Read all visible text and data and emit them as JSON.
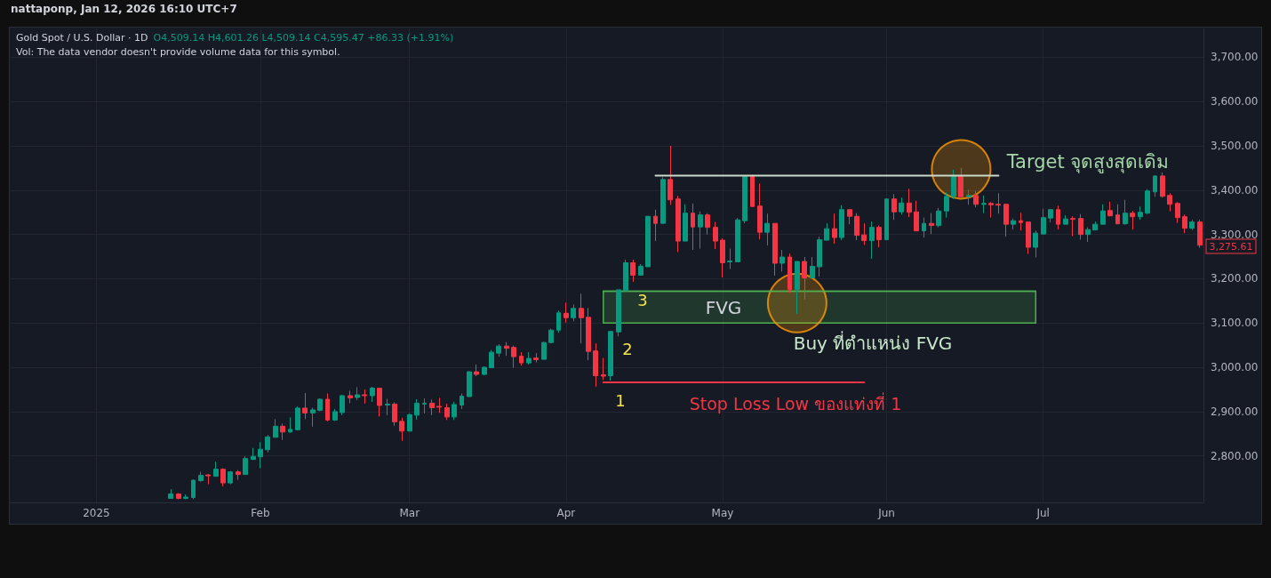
{
  "chart_data": {
    "type": "candlestick",
    "title": "Gold Spot / U.S. Dollar · 1D",
    "subtitle": "O4,509.14 H4,601.26 L4,509.14 C4,595.47 +86.33 (+1.91%)",
    "categories": [
      null,
      null,
      null,
      null,
      null,
      null,
      null,
      null,
      null,
      null,
      null,
      "2025",
      null,
      null,
      null,
      null,
      null,
      null,
      null,
      null,
      null,
      null,
      null,
      null,
      null,
      null,
      null,
      null,
      null,
      null,
      null,
      null,
      null,
      "Feb",
      null,
      null,
      null,
      null,
      null,
      null,
      null,
      null,
      null,
      null,
      null,
      null,
      null,
      null,
      null,
      null,
      null,
      null,
      null,
      "Mar",
      null,
      null,
      null,
      null,
      null,
      null,
      null,
      null,
      null,
      null,
      null,
      null,
      null,
      null,
      null,
      null,
      null,
      null,
      null,
      null,
      "Apr",
      null,
      null,
      null,
      null,
      null,
      null,
      null,
      null,
      null,
      null,
      null,
      null,
      null,
      null,
      null,
      null,
      null,
      null,
      null,
      null,
      "May",
      null,
      null,
      null,
      null,
      null,
      null,
      null,
      null,
      null,
      null,
      null,
      null,
      null,
      null,
      null,
      null,
      null,
      null,
      null,
      null,
      null,
      "Jun",
      null,
      null,
      null,
      null,
      null,
      null,
      null,
      null,
      null,
      null,
      null,
      null,
      null,
      null,
      null,
      null,
      null,
      null,
      null,
      null,
      "Jul",
      null,
      null,
      null,
      null,
      null,
      null,
      null,
      null,
      null,
      null,
      null,
      null,
      null,
      null,
      null,
      null,
      null,
      null,
      null,
      null,
      null
    ],
    "ohlc": [
      null,
      null,
      null,
      null,
      null,
      null,
      null,
      null,
      null,
      null,
      null,
      null,
      null,
      null,
      null,
      null,
      null,
      null,
      null,
      null,
      null,
      [
        2704,
        2725,
        2703,
        2714
      ],
      [
        2714,
        2716,
        2702,
        2704
      ],
      [
        2704,
        2713,
        2702,
        2707
      ],
      [
        2706,
        2747,
        2702,
        2745
      ],
      [
        2744,
        2764,
        2742,
        2756
      ],
      [
        2757,
        2759,
        2736,
        2755
      ],
      [
        2754,
        2787,
        2754,
        2770
      ],
      [
        2770,
        2772,
        2731,
        2739
      ],
      [
        2739,
        2766,
        2736,
        2764
      ],
      [
        2764,
        2768,
        2746,
        2758
      ],
      [
        2758,
        2799,
        2758,
        2794
      ],
      [
        2792,
        2818,
        2791,
        2799
      ],
      [
        2798,
        2831,
        2772,
        2815
      ],
      [
        2814,
        2847,
        2808,
        2843
      ],
      [
        2842,
        2883,
        2842,
        2867
      ],
      [
        2867,
        2873,
        2836,
        2854
      ],
      [
        2854,
        2887,
        2852,
        2860
      ],
      [
        2859,
        2912,
        2858,
        2908
      ],
      [
        2908,
        2942,
        2883,
        2897
      ],
      [
        2897,
        2909,
        2866,
        2904
      ],
      [
        2903,
        2930,
        2901,
        2928
      ],
      [
        2928,
        2941,
        2878,
        2881
      ],
      [
        2881,
        2906,
        2879,
        2900
      ],
      [
        2898,
        2938,
        2892,
        2936
      ],
      [
        2936,
        2947,
        2919,
        2931
      ],
      [
        2932,
        2955,
        2926,
        2938
      ],
      [
        2938,
        2950,
        2918,
        2936
      ],
      [
        2936,
        2956,
        2922,
        2953
      ],
      [
        2953,
        2954,
        2889,
        2914
      ],
      [
        2915,
        2929,
        2892,
        2917
      ],
      [
        2917,
        2921,
        2868,
        2877
      ],
      [
        2878,
        2886,
        2834,
        2856
      ],
      [
        2856,
        2896,
        2856,
        2893
      ],
      [
        2892,
        2928,
        2882,
        2919
      ],
      [
        2917,
        2930,
        2896,
        2919
      ],
      [
        2919,
        2927,
        2892,
        2909
      ],
      [
        2912,
        2931,
        2897,
        2910
      ],
      [
        2909,
        2918,
        2881,
        2888
      ],
      [
        2888,
        2922,
        2881,
        2916
      ],
      [
        2915,
        2941,
        2906,
        2935
      ],
      [
        2934,
        2991,
        2933,
        2990
      ],
      [
        2990,
        3006,
        2980,
        2984
      ],
      [
        2984,
        3002,
        2982,
        3000
      ],
      [
        2999,
        3039,
        2999,
        3034
      ],
      [
        3032,
        3052,
        3024,
        3048
      ],
      [
        3048,
        3057,
        3026,
        3043
      ],
      [
        3045,
        3049,
        2999,
        3024
      ],
      [
        3025,
        3034,
        3004,
        3010
      ],
      [
        3010,
        3034,
        3006,
        3020
      ],
      [
        3021,
        3032,
        3011,
        3017
      ],
      [
        3018,
        3058,
        3018,
        3056
      ],
      [
        3056,
        3087,
        3054,
        3084
      ],
      [
        3084,
        3128,
        3078,
        3123
      ],
      [
        3122,
        3146,
        3101,
        3112
      ],
      [
        3112,
        3142,
        3104,
        3133
      ],
      [
        3133,
        3166,
        3054,
        3112
      ],
      [
        3113,
        3134,
        3016,
        3036
      ],
      [
        3037,
        3054,
        2956,
        2981
      ],
      [
        2983,
        3021,
        2971,
        2980
      ],
      [
        2981,
        3081,
        2970,
        3081
      ],
      [
        3080,
        3175,
        3070,
        3175
      ],
      [
        3173,
        3243,
        3173,
        3236
      ],
      [
        3236,
        3243,
        3193,
        3208
      ],
      [
        3208,
        3233,
        3208,
        3228
      ],
      [
        3227,
        3341,
        3227,
        3341
      ],
      [
        3341,
        3356,
        3285,
        3325
      ],
      [
        3325,
        3429,
        3325,
        3424
      ],
      [
        3424,
        3500,
        3367,
        3378
      ],
      [
        3380,
        3387,
        3260,
        3285
      ],
      [
        3285,
        3368,
        3285,
        3348
      ],
      [
        3348,
        3370,
        3265,
        3317
      ],
      [
        3317,
        3352,
        3268,
        3344
      ],
      [
        3344,
        3348,
        3300,
        3316
      ],
      [
        3316,
        3328,
        3267,
        3285
      ],
      [
        3287,
        3291,
        3203,
        3236
      ],
      [
        3238,
        3268,
        3222,
        3240
      ],
      [
        3238,
        3337,
        3237,
        3333
      ],
      [
        3331,
        3431,
        3325,
        3431
      ],
      [
        3431,
        3435,
        3363,
        3363
      ],
      [
        3364,
        3415,
        3289,
        3305
      ],
      [
        3305,
        3347,
        3275,
        3325
      ],
      [
        3325,
        3325,
        3207,
        3235
      ],
      [
        3235,
        3265,
        3216,
        3249
      ],
      [
        3249,
        3257,
        3168,
        3176
      ],
      [
        3176,
        3239,
        3121,
        3239
      ],
      [
        3239,
        3249,
        3153,
        3202
      ],
      [
        3202,
        3249,
        3202,
        3228
      ],
      [
        3227,
        3295,
        3205,
        3288
      ],
      [
        3287,
        3325,
        3287,
        3313
      ],
      [
        3313,
        3347,
        3279,
        3293
      ],
      [
        3293,
        3366,
        3287,
        3356
      ],
      [
        3356,
        3356,
        3323,
        3341
      ],
      [
        3341,
        3348,
        3287,
        3298
      ],
      [
        3299,
        3325,
        3276,
        3286
      ],
      [
        3286,
        3329,
        3245,
        3316
      ],
      [
        3316,
        3320,
        3271,
        3288
      ],
      [
        3288,
        3380,
        3288,
        3380
      ],
      [
        3380,
        3391,
        3333,
        3351
      ],
      [
        3351,
        3383,
        3345,
        3371
      ],
      [
        3371,
        3403,
        3339,
        3350
      ],
      [
        3351,
        3376,
        3308,
        3308
      ],
      [
        3308,
        3338,
        3293,
        3325
      ],
      [
        3325,
        3348,
        3301,
        3320
      ],
      [
        3320,
        3360,
        3316,
        3353
      ],
      [
        3353,
        3395,
        3338,
        3386
      ],
      [
        3386,
        3446,
        3380,
        3431
      ],
      [
        3431,
        3450,
        3385,
        3385
      ],
      [
        3385,
        3401,
        3367,
        3388
      ],
      [
        3388,
        3398,
        3361,
        3368
      ],
      [
        3368,
        3388,
        3348,
        3370
      ],
      [
        3370,
        3373,
        3338,
        3367
      ],
      [
        3368,
        3393,
        3347,
        3366
      ],
      [
        3368,
        3369,
        3295,
        3323
      ],
      [
        3323,
        3336,
        3311,
        3331
      ],
      [
        3331,
        3349,
        3309,
        3327
      ],
      [
        3328,
        3328,
        3256,
        3271
      ],
      [
        3271,
        3309,
        3248,
        3303
      ],
      [
        3301,
        3358,
        3301,
        3338
      ],
      [
        3337,
        3356,
        3327,
        3356
      ],
      [
        3356,
        3365,
        3311,
        3323
      ],
      [
        3323,
        3343,
        3323,
        3335
      ],
      [
        3336,
        3341,
        3296,
        3334
      ],
      [
        3336,
        3346,
        3288,
        3300
      ],
      [
        3300,
        3316,
        3283,
        3311
      ],
      [
        3310,
        3329,
        3310,
        3323
      ],
      [
        3323,
        3368,
        3323,
        3353
      ],
      [
        3354,
        3374,
        3341,
        3342
      ],
      [
        3344,
        3368,
        3323,
        3324
      ],
      [
        3324,
        3378,
        3322,
        3348
      ],
      [
        3348,
        3353,
        3311,
        3340
      ],
      [
        3340,
        3363,
        3333,
        3350
      ],
      [
        3348,
        3402,
        3346,
        3398
      ],
      [
        3396,
        3433,
        3385,
        3432
      ],
      [
        3432,
        3440,
        3383,
        3386
      ],
      [
        3388,
        3393,
        3352,
        3368
      ],
      [
        3370,
        3373,
        3326,
        3338
      ],
      [
        3340,
        3345,
        3303,
        3314
      ],
      [
        3314,
        3333,
        3310,
        3328
      ],
      [
        3328,
        3333,
        3270,
        3275.61
      ]
    ],
    "series": [
      {
        "type": "line",
        "color": "#c9d9c9",
        "values": [
          null,
          null,
          null,
          null,
          null,
          null,
          null,
          null,
          null,
          null,
          null,
          null,
          null,
          null,
          null,
          null,
          null,
          null,
          null,
          null,
          null,
          null,
          null,
          null,
          null,
          null,
          null,
          null,
          null,
          null,
          null,
          null,
          null,
          null,
          null,
          null,
          null,
          null,
          null,
          null,
          null,
          null,
          null,
          null,
          null,
          null,
          null,
          null,
          null,
          null,
          null,
          null,
          null,
          null,
          null,
          null,
          null,
          null,
          null,
          null,
          null,
          null,
          null,
          null,
          null,
          null,
          null,
          null,
          null,
          null,
          null,
          null,
          null,
          null,
          null,
          null,
          null,
          null,
          null,
          null,
          null,
          null,
          null,
          null,
          null,
          null,
          3433,
          3433,
          3433,
          3433,
          3433,
          3433,
          3433,
          3433,
          3433,
          3433,
          3433,
          3433,
          3433,
          3433,
          3433,
          3433,
          3433,
          3433,
          3433,
          3433,
          3433,
          3433,
          3433,
          3433,
          3433,
          3433,
          3433,
          3433,
          3433,
          3433,
          3433,
          3433,
          3433,
          3433,
          3433,
          3433,
          3433,
          3433,
          3433,
          3433,
          3433,
          3433,
          3433,
          3433,
          3433,
          3433,
          3433,
          null,
          null,
          null,
          null,
          null,
          null,
          null,
          null,
          null,
          null,
          null,
          null,
          null,
          null,
          null,
          null,
          null,
          null,
          null,
          null,
          null,
          null,
          null,
          null,
          null,
          null,
          null
        ]
      },
      {
        "type": "line",
        "color": "#f23645",
        "values": [
          null,
          null,
          null,
          null,
          null,
          null,
          null,
          null,
          null,
          null,
          null,
          null,
          null,
          null,
          null,
          null,
          null,
          null,
          null,
          null,
          null,
          null,
          null,
          null,
          null,
          null,
          null,
          null,
          null,
          null,
          null,
          null,
          null,
          null,
          null,
          null,
          null,
          null,
          null,
          null,
          null,
          null,
          null,
          null,
          null,
          null,
          null,
          null,
          null,
          null,
          null,
          null,
          null,
          null,
          null,
          null,
          null,
          null,
          null,
          null,
          null,
          null,
          null,
          null,
          null,
          null,
          null,
          null,
          null,
          null,
          null,
          null,
          null,
          null,
          null,
          null,
          null,
          null,
          null,
          2966,
          2966,
          2966,
          2966,
          2966,
          2966,
          2966,
          2966,
          2966,
          2966,
          2966,
          2966,
          2966,
          2966,
          2966,
          2966,
          2966,
          2966,
          2966,
          2966,
          2966,
          2966,
          2966,
          2966,
          2966,
          2966,
          2966,
          2966,
          2966,
          2966,
          2966,
          2966,
          2966,
          2966,
          2966,
          2966,
          null,
          null,
          null,
          null,
          null,
          null,
          null,
          null,
          null,
          null,
          null,
          null,
          null,
          null,
          null,
          null,
          null,
          null,
          null,
          null,
          null,
          null,
          null,
          null,
          null,
          null,
          null,
          null,
          null,
          null,
          null,
          null,
          null,
          null,
          null,
          null,
          null,
          null,
          null,
          null,
          null,
          null,
          null,
          null,
          null
        ]
      },
      {
        "type": "line",
        "color": "#4caf50",
        "values": [
          null,
          null,
          null,
          null,
          null,
          null,
          null,
          null,
          null,
          null,
          null,
          null,
          null,
          null,
          null,
          null,
          null,
          null,
          null,
          null,
          null,
          null,
          null,
          null,
          null,
          null,
          null,
          null,
          null,
          null,
          null,
          null,
          null,
          null,
          null,
          null,
          null,
          null,
          null,
          null,
          null,
          null,
          null,
          null,
          null,
          null,
          null,
          null,
          null,
          null,
          null,
          null,
          null,
          null,
          null,
          null,
          null,
          null,
          null,
          null,
          null,
          null,
          null,
          null,
          null,
          null,
          null,
          null,
          null,
          null,
          null,
          null,
          null,
          null,
          null,
          null,
          null,
          null,
          null,
          3172,
          3172,
          3172,
          3172,
          3172,
          3172,
          3172,
          3172,
          3172,
          3172,
          3172,
          3172,
          3172,
          3172,
          3172,
          3172,
          3172,
          3172,
          3172,
          3172,
          3172,
          3172,
          3172,
          3172,
          3172,
          3172,
          3172,
          3172,
          3172,
          3172,
          3172,
          3172,
          3172,
          3172,
          3172,
          3172,
          3172,
          3172,
          3172,
          3172,
          3172,
          3172,
          3172,
          3172,
          3172,
          3172,
          3172,
          3172,
          3172,
          3172,
          3172,
          3172,
          3172,
          3172,
          3172,
          3172,
          3172,
          3172,
          3172,
          null,
          null,
          null,
          null,
          null,
          null,
          null,
          null,
          null,
          null,
          null,
          null,
          null,
          null,
          null,
          null,
          null,
          null,
          null,
          null,
          null,
          null
        ],
        "upper": [
          null,
          null,
          null,
          null,
          null,
          null,
          null,
          null,
          null,
          null,
          null,
          null,
          null,
          null,
          null,
          null,
          null,
          null,
          null,
          null,
          null,
          null,
          null,
          null,
          null,
          null,
          null,
          null,
          null,
          null,
          null,
          null,
          null,
          null,
          null,
          null,
          null,
          null,
          null,
          null,
          null,
          null,
          null,
          null,
          null,
          null,
          null,
          null,
          null,
          null,
          null,
          null,
          null,
          null,
          null,
          null,
          null,
          null,
          null,
          null,
          null,
          null,
          null,
          null,
          null,
          null,
          null,
          null,
          null,
          null,
          null,
          null,
          null,
          null,
          null,
          null,
          null,
          null,
          null,
          3172,
          3172,
          3172,
          3172,
          3172,
          3172,
          3172,
          3172,
          3172,
          3172,
          3172,
          3172,
          3172,
          3172,
          3172,
          3172,
          3172,
          3172,
          3172,
          3172,
          3172,
          3172,
          3172,
          3172,
          3172,
          3172,
          3172,
          3172,
          3172,
          3172,
          3172,
          3172,
          3172,
          3172,
          3172,
          3172,
          3172,
          3172,
          3172,
          3172,
          3172,
          3172,
          3172,
          3172,
          3172,
          3172,
          3172,
          3172,
          3172,
          3172,
          3172,
          3172,
          3172,
          3172,
          3172,
          3172,
          3172,
          3172,
          3172,
          null,
          null,
          null,
          null,
          null,
          null,
          null,
          null,
          null,
          null,
          null,
          null,
          null,
          null,
          null,
          null,
          null,
          null,
          null,
          null,
          null,
          null
        ],
        "lower": [
          null,
          null,
          null,
          null,
          null,
          null,
          null,
          null,
          null,
          null,
          null,
          null,
          null,
          null,
          null,
          null,
          null,
          null,
          null,
          null,
          null,
          null,
          null,
          null,
          null,
          null,
          null,
          null,
          null,
          null,
          null,
          null,
          null,
          null,
          null,
          null,
          null,
          null,
          null,
          null,
          null,
          null,
          null,
          null,
          null,
          null,
          null,
          null,
          null,
          null,
          null,
          null,
          null,
          null,
          null,
          null,
          null,
          null,
          null,
          null,
          null,
          null,
          null,
          null,
          null,
          null,
          null,
          null,
          null,
          null,
          null,
          null,
          null,
          null,
          null,
          null,
          null,
          null,
          null,
          3100,
          3100,
          3100,
          3100,
          3100,
          3100,
          3100,
          3100,
          3100,
          3100,
          3100,
          3100,
          3100,
          3100,
          3100,
          3100,
          3100,
          3100,
          3100,
          3100,
          3100,
          3100,
          3100,
          3100,
          3100,
          3100,
          3100,
          3100,
          3100,
          3100,
          3100,
          3100,
          3100,
          3100,
          3100,
          3100,
          3100,
          3100,
          3100,
          3100,
          3100,
          3100,
          3100,
          3100,
          3100,
          3100,
          3100,
          3100,
          3100,
          3100,
          3100,
          3100,
          3100,
          3100,
          3100,
          3100,
          3100,
          3100,
          3100,
          null,
          null,
          null,
          null,
          null,
          null,
          null,
          null,
          null,
          null,
          null,
          null,
          null,
          null,
          null,
          null,
          null,
          null,
          null,
          null,
          null,
          null
        ]
      },
      {
        "type": "scatter",
        "color": "#ff9800",
        "marker": "circle",
        "values": [
          null,
          null,
          null,
          null,
          null,
          null,
          null,
          null,
          null,
          null,
          null,
          null,
          null,
          null,
          null,
          null,
          null,
          null,
          null,
          null,
          null,
          null,
          null,
          null,
          null,
          null,
          null,
          null,
          null,
          null,
          null,
          null,
          null,
          null,
          null,
          null,
          null,
          null,
          null,
          null,
          null,
          null,
          null,
          null,
          null,
          null,
          null,
          null,
          null,
          null,
          null,
          null,
          null,
          null,
          null,
          null,
          null,
          null,
          null,
          null,
          null,
          null,
          null,
          null,
          null,
          null,
          null,
          null,
          null,
          null,
          null,
          null,
          null,
          null,
          null,
          null,
          null,
          null,
          null,
          null,
          null,
          null,
          null,
          null,
          null,
          null,
          null,
          null,
          null,
          null,
          null,
          null,
          null,
          null,
          null,
          null,
          null,
          null,
          null,
          null,
          null,
          null,
          null,
          null,
          null,
          3145,
          null,
          null,
          null,
          null,
          null,
          null,
          null,
          null,
          null,
          null,
          null,
          null,
          null,
          null,
          null,
          null,
          null,
          null,
          null,
          null,
          null,
          3447,
          null,
          null,
          null,
          null,
          null,
          null,
          null,
          null,
          null,
          null,
          null,
          null,
          null,
          null,
          null,
          null,
          null,
          null,
          null,
          null,
          null,
          null,
          null,
          null,
          null,
          null,
          null,
          null,
          null,
          null,
          null,
          null
        ]
      }
    ],
    "ylim": [
      2695,
      3765
    ],
    "yticks": [
      {
        "value": 2800,
        "label": "2,800.00"
      },
      {
        "value": 2900,
        "label": "2,900.00"
      },
      {
        "value": 3000,
        "label": "3,000.00"
      },
      {
        "value": 3100,
        "label": "3,100.00"
      },
      {
        "value": 3200,
        "label": "3,200.00"
      },
      {
        "value": 3300,
        "label": "3,300.00"
      },
      {
        "value": 3400,
        "label": "3,400.00"
      },
      {
        "value": 3500,
        "label": "3,500.00"
      },
      {
        "value": 3600,
        "label": "3,600.00"
      },
      {
        "value": 3700,
        "label": "3,700.00"
      }
    ],
    "grid": true,
    "annotations": [
      "nattaponp, Jan 12, 2026 16:10 UTC+7",
      "Vol: The data vendor doesn't provide volume data for this symbol.",
      "1",
      "2",
      "3",
      "FVG",
      "Buy ที่ตำแหน่ง FVG",
      "Target จุดสูงสุดเดิม",
      "Stop Loss Low ของแท่งที่ 1",
      "3,275.61"
    ]
  }
}
